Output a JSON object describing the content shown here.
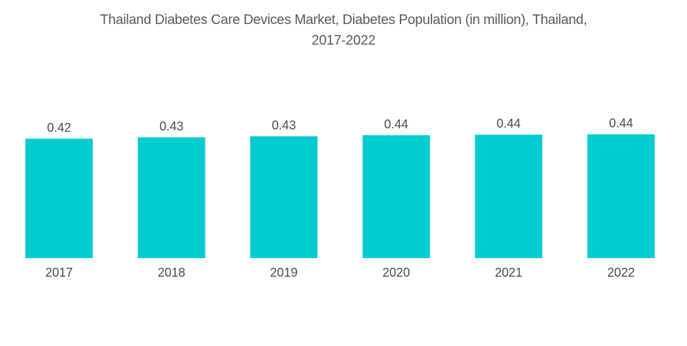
{
  "chart_data": {
    "type": "bar",
    "title_line1": "Thailand Diabetes Care Devices Market, Diabetes Population (in million), Thailand,",
    "title_line2": "2017-2022",
    "categories": [
      "2017",
      "2018",
      "2019",
      "2020",
      "2021",
      "2022"
    ],
    "values": [
      0.42,
      0.43,
      0.43,
      0.44,
      0.44,
      0.44
    ],
    "labels": [
      "0.42",
      "0.43",
      "0.43",
      "0.44",
      "0.44",
      "0.44"
    ],
    "actual_relative": [
      0.4225,
      0.4275,
      0.431,
      0.4345,
      0.4365,
      0.438
    ],
    "xlabel": "",
    "ylabel": "",
    "ylim": [
      0,
      0.5
    ],
    "grid": false,
    "legend": "none",
    "bar_color": "#00cccf"
  }
}
